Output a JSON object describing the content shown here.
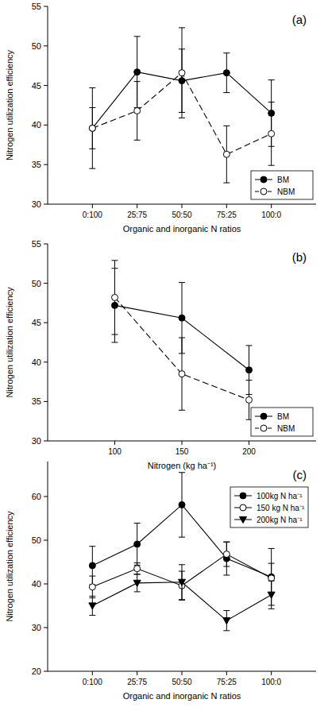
{
  "chart_data": [
    {
      "type": "line",
      "title": "(a)",
      "x_label": "Organic and inorganic N ratios",
      "y_label": "Nitrogen utilization efficiency",
      "categories": [
        "0:100",
        "25:75",
        "50:50",
        "75:25",
        "100:0"
      ],
      "ylim": [
        30,
        55
      ],
      "yticks": [
        30,
        35,
        40,
        45,
        50,
        55
      ],
      "grid": false,
      "legend": "lower right",
      "series": [
        {
          "name": "BM",
          "color": "#000000",
          "marker": "circle",
          "line_style": "solid",
          "values": [
            39.6,
            46.7,
            45.6,
            46.6,
            41.5
          ],
          "errors": [
            5.1,
            4.5,
            4.0,
            2.5,
            4.2
          ]
        },
        {
          "name": "NBM",
          "color": "#000000",
          "marker": "open_circle",
          "line_style": "dashed",
          "values": [
            39.6,
            41.8,
            46.6,
            36.3,
            38.9
          ],
          "errors": [
            2.6,
            3.7,
            5.7,
            3.6,
            4.0
          ]
        }
      ]
    },
    {
      "type": "line",
      "title": "(b)",
      "x_label": "Nitrogen (kg ha⁻¹)",
      "y_label": "Nitrogen utilization efficiency",
      "x": [
        100,
        150,
        200
      ],
      "xlim": [
        50,
        250
      ],
      "xticks": [
        100,
        150,
        200
      ],
      "ylim": [
        30,
        55
      ],
      "yticks": [
        30,
        35,
        40,
        45,
        50,
        55
      ],
      "grid": false,
      "legend": "lower right",
      "series": [
        {
          "name": "BM",
          "color": "#000000",
          "marker": "circle",
          "line_style": "solid",
          "values": [
            47.2,
            45.6,
            39.0
          ],
          "errors": [
            4.7,
            4.5,
            3.1
          ]
        },
        {
          "name": "NBM",
          "color": "#000000",
          "marker": "open_circle",
          "line_style": "dashed",
          "values": [
            48.2,
            38.5,
            35.2
          ],
          "errors": [
            4.7,
            4.6,
            2.5
          ]
        }
      ]
    },
    {
      "type": "line",
      "title": "(c)",
      "x_label": "Organic and inorganic N ratios",
      "y_label": "Nitrogen utilization efficiency",
      "categories": [
        "0:100",
        "25:75",
        "50:50",
        "75:25",
        "100:0"
      ],
      "ylim": [
        20,
        68
      ],
      "yticks": [
        20,
        30,
        40,
        50,
        60
      ],
      "grid": false,
      "legend": "upper right",
      "series": [
        {
          "name": "100kg N ha⁻¹",
          "color": "#000000",
          "marker": "circle",
          "line_style": "solid",
          "values": [
            44.2,
            49.1,
            58.1,
            45.8,
            41.6
          ],
          "errors": [
            4.4,
            4.8,
            7.4,
            3.8,
            6.5
          ]
        },
        {
          "name": "150 kg N ha⁻¹",
          "color": "#000000",
          "marker": "open_circle",
          "line_style": "solid",
          "values": [
            39.3,
            43.5,
            39.6,
            46.8,
            41.3
          ],
          "errors": [
            2.5,
            1.3,
            3.3,
            2.8,
            3.4
          ]
        },
        {
          "name": "200kg N ha⁻¹",
          "color": "#000000",
          "marker": "triangle_down",
          "line_style": "solid",
          "values": [
            35.0,
            40.2,
            40.4,
            31.6,
            37.5
          ],
          "errors": [
            2.2,
            2.0,
            4.0,
            2.3,
            3.2
          ]
        }
      ]
    }
  ]
}
